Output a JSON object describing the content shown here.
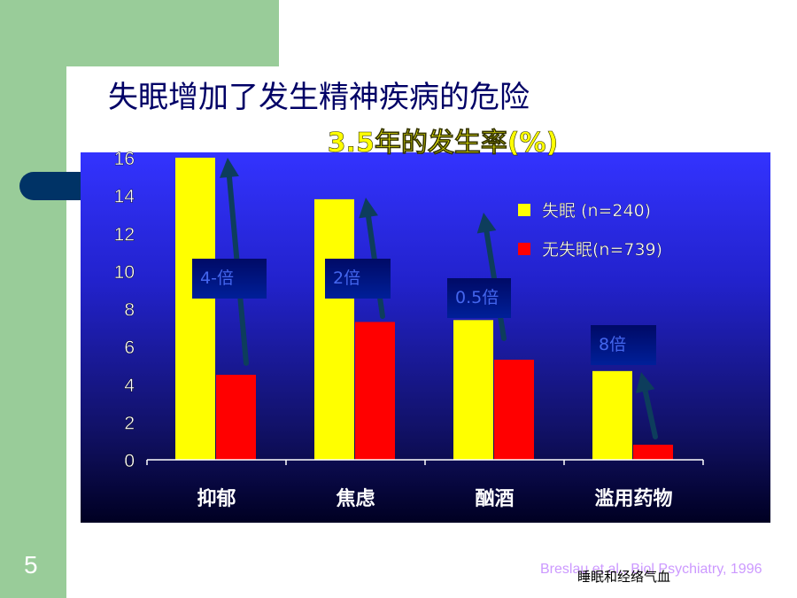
{
  "slide": {
    "title": "失眠增加了发生精神疾病的危险",
    "page_number": "5",
    "citation": "Breslau et al., Biol Psychiatry, 1996",
    "footer_note": "睡眠和经络气血"
  },
  "colors": {
    "insomnia": "#ffff00",
    "no_insomnia": "#ff0000",
    "arrow": "#0d3d5c",
    "badge": "#000a66"
  },
  "chart_data": {
    "type": "bar",
    "title": "3.5年的发生率(%)",
    "categories": [
      "抑郁",
      "焦虑",
      "酗酒",
      "滥用药物"
    ],
    "series": [
      {
        "name": "失眠 (n=240)",
        "values": [
          16,
          13.8,
          7.4,
          4.7
        ]
      },
      {
        "name": "无失眠(n=739)",
        "values": [
          4.5,
          7.3,
          5.3,
          0.8
        ]
      }
    ],
    "ylim": [
      0,
      16
    ],
    "yticks": [
      "0",
      "2",
      "4",
      "6",
      "8",
      "10",
      "12",
      "14",
      "16"
    ],
    "legend_position": "top-right",
    "annotations": [
      "4-倍",
      "2倍",
      "0.5倍",
      "8倍"
    ]
  }
}
